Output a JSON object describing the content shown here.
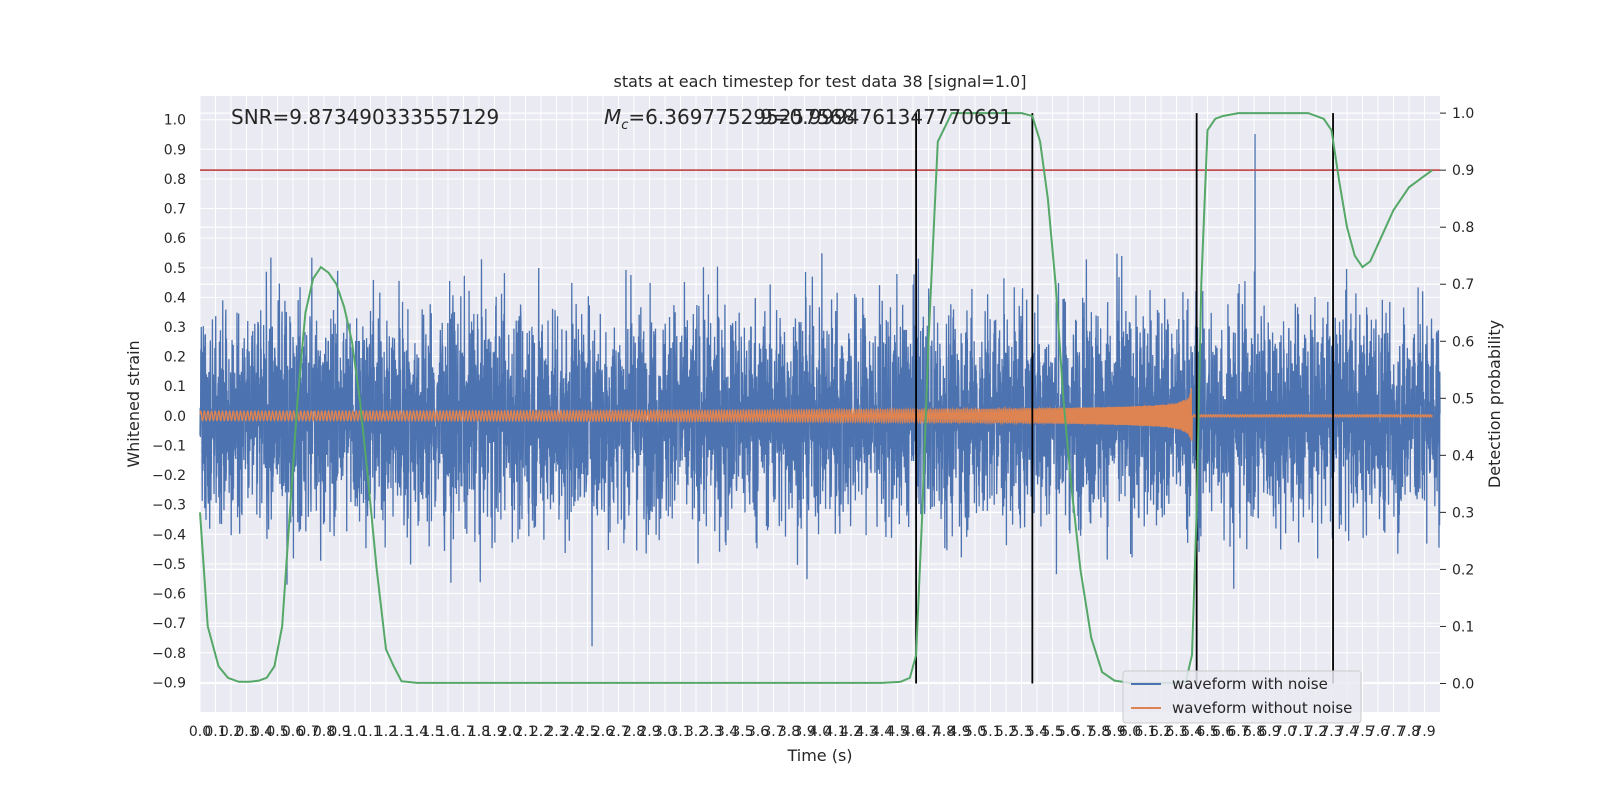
{
  "chart_data": {
    "type": "line",
    "title": "stats at each timestep for test data 38 [signal=1.0]",
    "xlabel": "Time (s)",
    "ylabel": "Whitened strain",
    "y2label": "Detection probability",
    "xlim": [
      0.0,
      8.0
    ],
    "ylim": [
      -1.0,
      1.08
    ],
    "y2lim": [
      -0.05,
      1.03
    ],
    "x_ticks": [
      "0.0",
      "0.1",
      "0.2",
      "0.3",
      "0.4",
      "0.5",
      "0.6",
      "0.7",
      "0.8",
      "0.9",
      "1.0",
      "1.1",
      "1.2",
      "1.3",
      "1.4",
      "1.5",
      "1.6",
      "1.7",
      "1.8",
      "1.9",
      "2.0",
      "2.1",
      "2.2",
      "2.3",
      "2.4",
      "2.5",
      "2.6",
      "2.7",
      "2.8",
      "2.9",
      "3.0",
      "3.1",
      "3.2",
      "3.3",
      "3.4",
      "3.5",
      "3.6",
      "3.7",
      "3.8",
      "3.9",
      "4.0",
      "4.1",
      "4.2",
      "4.3",
      "4.4",
      "4.5",
      "4.6",
      "4.7",
      "4.8",
      "4.9",
      "5.0",
      "5.1",
      "5.2",
      "5.3",
      "5.4",
      "5.5",
      "5.6",
      "5.7",
      "5.8",
      "5.9",
      "6.0",
      "6.1",
      "6.2",
      "6.3",
      "6.4",
      "6.5",
      "6.6",
      "6.7",
      "6.8",
      "6.9",
      "7.0",
      "7.1",
      "7.2",
      "7.3",
      "7.4",
      "7.5",
      "7.6",
      "7.7",
      "7.8",
      "7.9"
    ],
    "y_ticks": [
      "−0.9",
      "−0.8",
      "−0.7",
      "−0.6",
      "−0.5",
      "−0.4",
      "−0.3",
      "−0.2",
      "−0.1",
      "0.0",
      "0.1",
      "0.2",
      "0.3",
      "0.4",
      "0.5",
      "0.6",
      "0.7",
      "0.8",
      "0.9",
      "1.0"
    ],
    "y2_ticks": [
      "0.0",
      "0.1",
      "0.2",
      "0.3",
      "0.4",
      "0.5",
      "0.6",
      "0.7",
      "0.8",
      "0.9",
      "1.0"
    ],
    "annotations": {
      "snr": "SNR=9.873490333557129",
      "mc_prefix": "M",
      "mc_sub": "c",
      "mc_value": "=6.369775295257568",
      "overlap": "9=0.9994761347770691"
    },
    "threshold": 0.9,
    "vertical_lines": [
      4.62,
      5.37,
      6.43,
      7.31
    ],
    "detection_probability": {
      "x": [
        0.0,
        0.05,
        0.12,
        0.18,
        0.25,
        0.32,
        0.38,
        0.43,
        0.48,
        0.53,
        0.58,
        0.63,
        0.68,
        0.73,
        0.78,
        0.83,
        0.88,
        0.93,
        0.98,
        1.03,
        1.08,
        1.14,
        1.2,
        1.25,
        1.3,
        1.4,
        1.6,
        2.0,
        3.0,
        4.0,
        4.4,
        4.52,
        4.58,
        4.62,
        4.66,
        4.7,
        4.76,
        4.85,
        5.0,
        5.2,
        5.3,
        5.37,
        5.42,
        5.47,
        5.52,
        5.57,
        5.62,
        5.68,
        5.75,
        5.82,
        5.9,
        6.0,
        6.2,
        6.3,
        6.36,
        6.4,
        6.43,
        6.46,
        6.5,
        6.55,
        6.6,
        6.7,
        6.8,
        7.0,
        7.15,
        7.25,
        7.3,
        7.35,
        7.4,
        7.45,
        7.5,
        7.55,
        7.6,
        7.65,
        7.7,
        7.75,
        7.8,
        7.85,
        7.9,
        7.95
      ],
      "y": [
        0.3,
        0.1,
        0.03,
        0.01,
        0.003,
        0.003,
        0.005,
        0.01,
        0.03,
        0.1,
        0.3,
        0.5,
        0.65,
        0.71,
        0.73,
        0.72,
        0.7,
        0.66,
        0.6,
        0.5,
        0.37,
        0.2,
        0.06,
        0.03,
        0.004,
        0.001,
        0.001,
        0.001,
        0.001,
        0.001,
        0.001,
        0.003,
        0.01,
        0.05,
        0.3,
        0.6,
        0.95,
        1.0,
        1.0,
        1.0,
        1.0,
        0.995,
        0.95,
        0.85,
        0.7,
        0.5,
        0.35,
        0.2,
        0.08,
        0.02,
        0.005,
        0.001,
        0.001,
        0.001,
        0.003,
        0.05,
        0.3,
        0.7,
        0.97,
        0.99,
        0.995,
        1.0,
        1.0,
        1.0,
        1.0,
        0.99,
        0.97,
        0.88,
        0.8,
        0.75,
        0.73,
        0.74,
        0.77,
        0.8,
        0.83,
        0.85,
        0.87,
        0.88,
        0.89,
        0.9
      ]
    },
    "series": [
      {
        "name": "waveform with noise",
        "color": "#4c72b0",
        "noise_envelope": 0.25,
        "peak_amplitude": 1.0
      },
      {
        "name": "waveform without noise",
        "color": "#dd8452",
        "merger_time": 6.4,
        "peak_amplitude": 0.3
      }
    ],
    "probability_color": "#55a868",
    "threshold_color": "#c44e52",
    "vertical_line_color": "#000000",
    "grid": true,
    "legend_position": "bottom-right"
  }
}
